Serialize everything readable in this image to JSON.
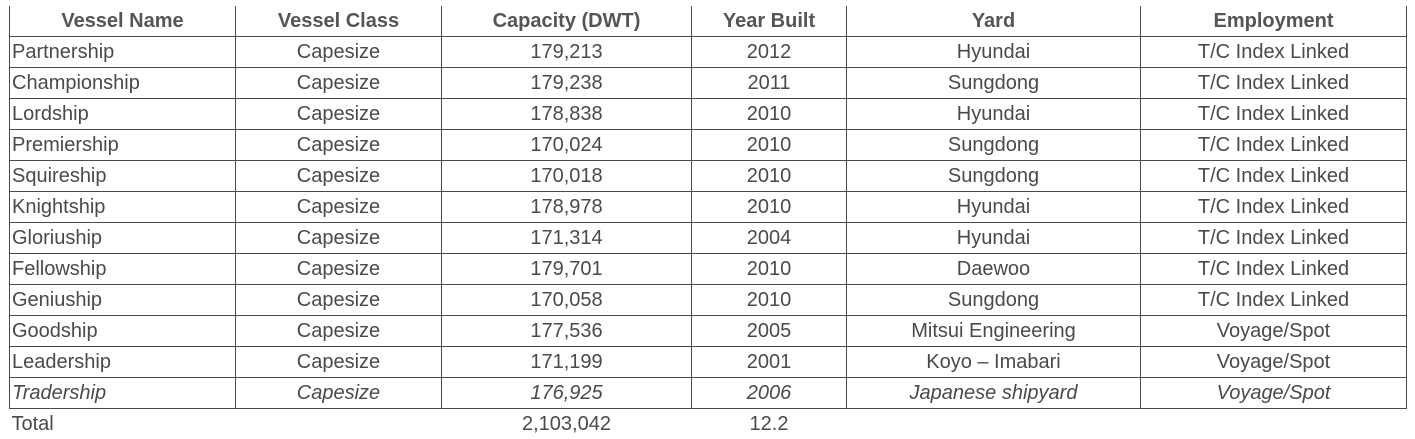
{
  "table": {
    "headers": [
      "Vessel Name",
      "Vessel Class",
      "Capacity (DWT)",
      "Year Built",
      "Yard",
      "Employment"
    ],
    "rows": [
      {
        "name": "Partnership",
        "class": "Capesize",
        "capacity": "179,213",
        "year": "2012",
        "yard": "Hyundai",
        "employment": "T/C Index Linked",
        "italic": false
      },
      {
        "name": "Championship",
        "class": "Capesize",
        "capacity": "179,238",
        "year": "2011",
        "yard": "Sungdong",
        "employment": "T/C Index Linked",
        "italic": false
      },
      {
        "name": "Lordship",
        "class": "Capesize",
        "capacity": "178,838",
        "year": "2010",
        "yard": "Hyundai",
        "employment": "T/C Index Linked",
        "italic": false
      },
      {
        "name": "Premiership",
        "class": "Capesize",
        "capacity": "170,024",
        "year": "2010",
        "yard": "Sungdong",
        "employment": "T/C Index Linked",
        "italic": false
      },
      {
        "name": "Squireship",
        "class": "Capesize",
        "capacity": "170,018",
        "year": "2010",
        "yard": "Sungdong",
        "employment": "T/C Index Linked",
        "italic": false
      },
      {
        "name": "Knightship",
        "class": "Capesize",
        "capacity": "178,978",
        "year": "2010",
        "yard": "Hyundai",
        "employment": "T/C Index Linked",
        "italic": false
      },
      {
        "name": "Gloriuship",
        "class": "Capesize",
        "capacity": "171,314",
        "year": "2004",
        "yard": "Hyundai",
        "employment": "T/C Index Linked",
        "italic": false
      },
      {
        "name": "Fellowship",
        "class": "Capesize",
        "capacity": "179,701",
        "year": "2010",
        "yard": "Daewoo",
        "employment": "T/C Index Linked",
        "italic": false
      },
      {
        "name": "Geniuship",
        "class": "Capesize",
        "capacity": "170,058",
        "year": "2010",
        "yard": "Sungdong",
        "employment": "T/C Index Linked",
        "italic": false
      },
      {
        "name": "Goodship",
        "class": "Capesize",
        "capacity": "177,536",
        "year": "2005",
        "yard": "Mitsui Engineering",
        "employment": "Voyage/Spot",
        "italic": false
      },
      {
        "name": "Leadership",
        "class": "Capesize",
        "capacity": "171,199",
        "year": "2001",
        "yard": "Koyo – Imabari",
        "employment": "Voyage/Spot",
        "italic": false
      },
      {
        "name": "Tradership",
        "class": "Capesize",
        "capacity": "176,925",
        "year": "2006",
        "yard": "Japanese shipyard",
        "employment": "Voyage/Spot",
        "italic": true
      }
    ],
    "total": {
      "label": "Total",
      "capacity": "2,103,042",
      "year": "12.2"
    }
  }
}
